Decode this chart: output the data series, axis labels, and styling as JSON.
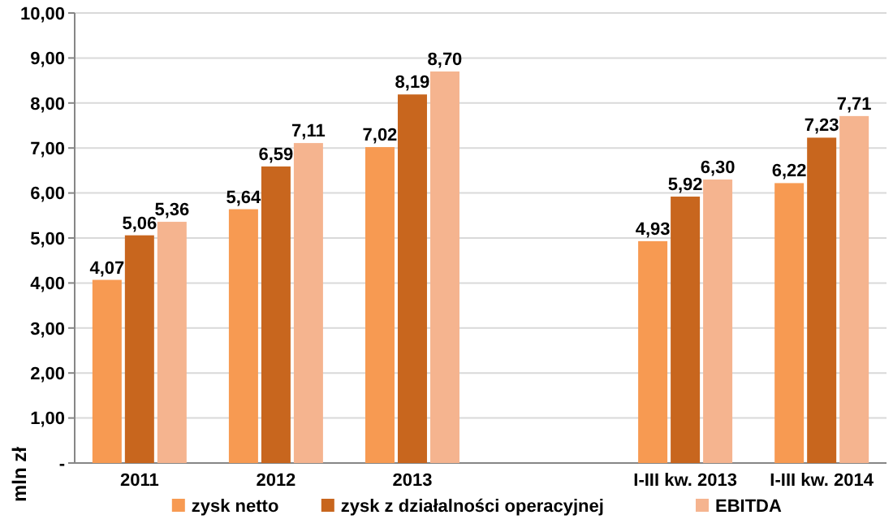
{
  "chart_data": {
    "type": "bar",
    "ylabel": "mln zł",
    "categories": [
      "2011",
      "2012",
      "2013",
      null,
      "I-III kw. 2013",
      "I-III kw. 2014"
    ],
    "series": [
      {
        "name": "zysk netto",
        "color": "#f79a52",
        "values": [
          4.07,
          5.64,
          7.02,
          null,
          4.93,
          6.22
        ],
        "value_labels": [
          "4,07",
          "5,64",
          "7,02",
          null,
          "4,93",
          "6,22"
        ]
      },
      {
        "name": "zysk z działalności operacyjnej",
        "color": "#c8661e",
        "values": [
          5.06,
          6.59,
          8.19,
          null,
          5.92,
          7.23
        ],
        "value_labels": [
          "5,06",
          "6,59",
          "8,19",
          null,
          "5,92",
          "7,23"
        ]
      },
      {
        "name": "EBITDA",
        "color": "#f5b48f",
        "values": [
          5.36,
          7.11,
          8.7,
          null,
          6.3,
          7.71
        ],
        "value_labels": [
          "5,36",
          "7,11",
          "8,70",
          null,
          "6,30",
          "7,71"
        ]
      }
    ],
    "ylim": [
      0,
      10
    ],
    "yticks": [
      {
        "value": 0,
        "label": "-"
      },
      {
        "value": 1,
        "label": "1,00"
      },
      {
        "value": 2,
        "label": "2,00"
      },
      {
        "value": 3,
        "label": "3,00"
      },
      {
        "value": 4,
        "label": "4,00"
      },
      {
        "value": 5,
        "label": "5,00"
      },
      {
        "value": 6,
        "label": "6,00"
      },
      {
        "value": 7,
        "label": "7,00"
      },
      {
        "value": 8,
        "label": "8,00"
      },
      {
        "value": 9,
        "label": "9,00"
      },
      {
        "value": 10,
        "label": "10,00"
      }
    ],
    "grid": "y",
    "legend": "bottom"
  }
}
